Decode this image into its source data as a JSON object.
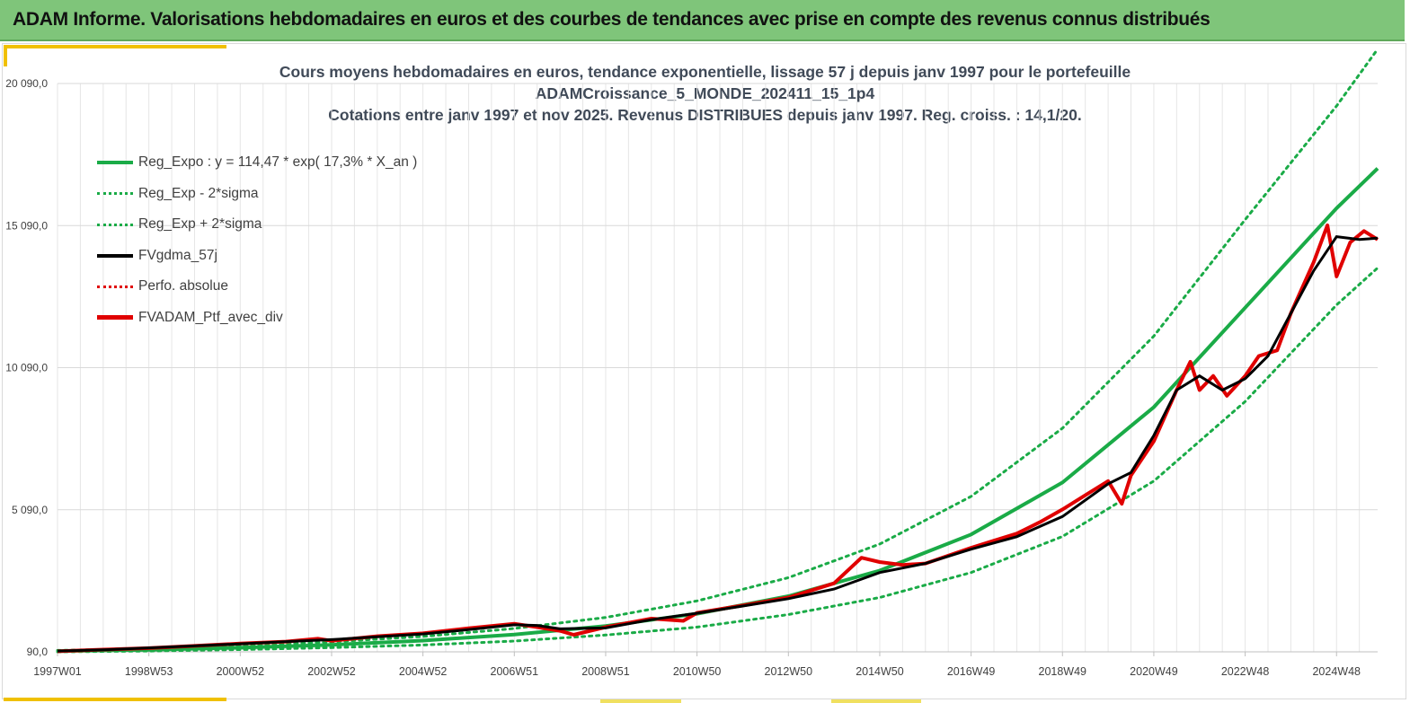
{
  "banner": {
    "title": "ADAM Informe. Valorisations hebdomadaires en euros et des courbes de tendances avec prise en compte des revenus connus distribués"
  },
  "colors": {
    "banner_bg": "#7fc57a",
    "reg_expo": "#1aab47",
    "smoothed": "#000000",
    "portfolio": "#e00000",
    "accent": "#f0c000"
  },
  "chart_data": {
    "type": "line",
    "title_lines": [
      "Cours moyens hebdomadaires  en euros, tendance exponentielle, lissage 57 j depuis janv 1997 pour le portefeuille",
      "ADAMCroissance_5_MONDE_202411_15_1p4",
      "Cotations  entre janv 1997 et nov  2025. Revenus DISTRIBUES depuis janv 1997. Reg. croiss. : 14,1/20."
    ],
    "x_tick_labels": [
      "1997W01",
      "1998W53",
      "2000W52",
      "2002W52",
      "2004W52",
      "2006W51",
      "2008W51",
      "2010W50",
      "2012W50",
      "2014W50",
      "2016W49",
      "2018W49",
      "2020W49",
      "2022W48",
      "2024W48"
    ],
    "x_range_years": [
      1997.0,
      2025.9
    ],
    "y_tick_values": [
      90,
      5090,
      10090,
      15090,
      20090
    ],
    "y_tick_labels": [
      "90,0",
      "5 090,0",
      "10 090,0",
      "15 090,0",
      "20 090,0"
    ],
    "ylim": [
      90,
      20090
    ],
    "grid": true,
    "legend_position": "top-left",
    "reg_expo": {
      "a": 114.47,
      "rate": 0.173,
      "note_formula": "y = 114,47 * exp( 17,3% *  X_an )"
    },
    "series": [
      {
        "name": "Reg_Expo : y = 114,47 * exp( 17,3% *  X_an )",
        "style": "green-solid",
        "x": [
          1997.0,
          1999.0,
          2001.0,
          2003.0,
          2005.0,
          2007.0,
          2009.0,
          2011.0,
          2013.0,
          2015.0,
          2017.0,
          2019.0,
          2021.0,
          2023.0,
          2025.0,
          2025.9
        ],
        "y": [
          114,
          162,
          235,
          338,
          485,
          700,
          1000,
          1430,
          2050,
          2950,
          4220,
          6050,
          8700,
          12200,
          15700,
          17100
        ]
      },
      {
        "name": "Reg_Exp - 2*sigma",
        "style": "green-dotted",
        "x": [
          1997.0,
          1999.0,
          2001.0,
          2003.0,
          2005.0,
          2007.0,
          2009.0,
          2011.0,
          2013.0,
          2015.0,
          2017.0,
          2019.0,
          2021.0,
          2023.0,
          2025.0,
          2025.9
        ],
        "y": [
          90,
          120,
          170,
          240,
          330,
          470,
          680,
          960,
          1400,
          2000,
          2880,
          4150,
          6100,
          8900,
          12300,
          13600
        ]
      },
      {
        "name": "Reg_Exp + 2*sigma",
        "style": "green-dotted",
        "x": [
          1997.0,
          1999.0,
          2001.0,
          2003.0,
          2005.0,
          2007.0,
          2009.0,
          2011.0,
          2013.0,
          2015.0,
          2017.0,
          2019.0,
          2021.0,
          2023.0,
          2025.0,
          2025.9
        ],
        "y": [
          140,
          200,
          300,
          440,
          630,
          910,
          1300,
          1880,
          2700,
          3880,
          5560,
          7960,
          11200,
          15300,
          19300,
          21300
        ]
      },
      {
        "name": "FVgdma_57j",
        "style": "black-solid",
        "x": [
          1997.0,
          1998.0,
          1999.0,
          2000.0,
          2001.0,
          2002.0,
          2003.0,
          2004.0,
          2005.0,
          2006.0,
          2007.0,
          2007.5,
          2008.0,
          2009.0,
          2010.0,
          2011.0,
          2012.0,
          2013.0,
          2014.0,
          2015.0,
          2016.0,
          2017.0,
          2018.0,
          2019.0,
          2020.0,
          2020.5,
          2021.0,
          2021.5,
          2022.0,
          2022.5,
          2023.0,
          2023.5,
          2024.0,
          2024.5,
          2025.0,
          2025.5,
          2025.9
        ],
        "y": [
          120,
          160,
          230,
          300,
          370,
          450,
          520,
          620,
          720,
          870,
          1040,
          1020,
          900,
          930,
          1220,
          1450,
          1700,
          1960,
          2300,
          2880,
          3200,
          3700,
          4140,
          4850,
          6000,
          6400,
          7700,
          9300,
          9800,
          9300,
          9700,
          10500,
          12000,
          13500,
          14700,
          14600,
          14650
        ]
      },
      {
        "name": "Perfo. absolue",
        "style": "red-dotted",
        "x": [],
        "y": []
      },
      {
        "name": "FVADAM_Ptf_avec_div",
        "style": "red-solid",
        "x": [
          1997.0,
          1998.0,
          1999.0,
          2000.0,
          2001.0,
          2002.0,
          2002.7,
          2003.0,
          2004.0,
          2005.0,
          2006.0,
          2007.0,
          2007.5,
          2008.0,
          2008.3,
          2009.0,
          2010.0,
          2010.7,
          2011.0,
          2012.0,
          2013.0,
          2014.0,
          2014.6,
          2015.0,
          2015.5,
          2016.0,
          2017.0,
          2017.5,
          2018.0,
          2018.5,
          2019.0,
          2019.5,
          2020.0,
          2020.3,
          2020.5,
          2021.0,
          2021.5,
          2021.8,
          2022.0,
          2022.3,
          2022.6,
          2023.0,
          2023.3,
          2023.7,
          2024.0,
          2024.5,
          2024.8,
          2025.0,
          2025.3,
          2025.6,
          2025.9
        ],
        "y": [
          110,
          170,
          220,
          300,
          380,
          450,
          550,
          480,
          640,
          740,
          920,
          1080,
          960,
          830,
          690,
          960,
          1260,
          1180,
          1460,
          1720,
          2000,
          2500,
          3400,
          3250,
          3150,
          3200,
          3750,
          4000,
          4250,
          4650,
          5100,
          5600,
          6100,
          5300,
          6300,
          7500,
          9300,
          10300,
          9300,
          9800,
          9100,
          9800,
          10500,
          10700,
          12000,
          13800,
          15100,
          13300,
          14500,
          14900,
          14600
        ]
      }
    ]
  }
}
